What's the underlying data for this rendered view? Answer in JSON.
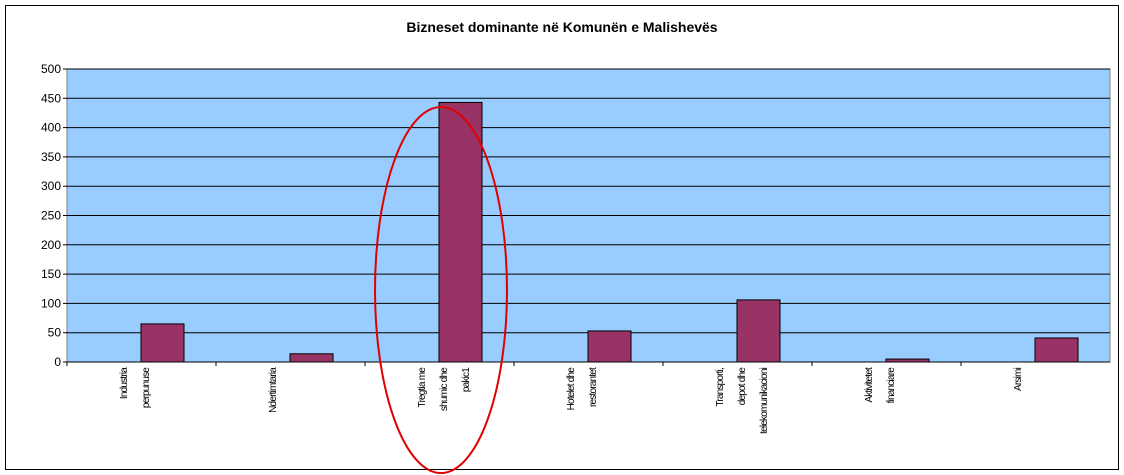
{
  "chart_data": {
    "type": "bar",
    "title": "Bizneset dominante në Komunën e Malishevës",
    "categories": [
      "Industria perpunuse",
      "Ndertimtaria",
      "Tregtia me shumic dhe pakic1",
      "Hotelet dhe restorantet",
      "Transporti, depot dhe telekomunikacioni",
      "Aktivitetet financiare",
      "Arsimi"
    ],
    "values": [
      65,
      14,
      443,
      53,
      106,
      5,
      41
    ],
    "color": "#993366",
    "ylim": [
      0,
      500
    ],
    "yticks": [
      0,
      50,
      100,
      150,
      200,
      250,
      300,
      350,
      400,
      450,
      500
    ],
    "grid": true
  }
}
